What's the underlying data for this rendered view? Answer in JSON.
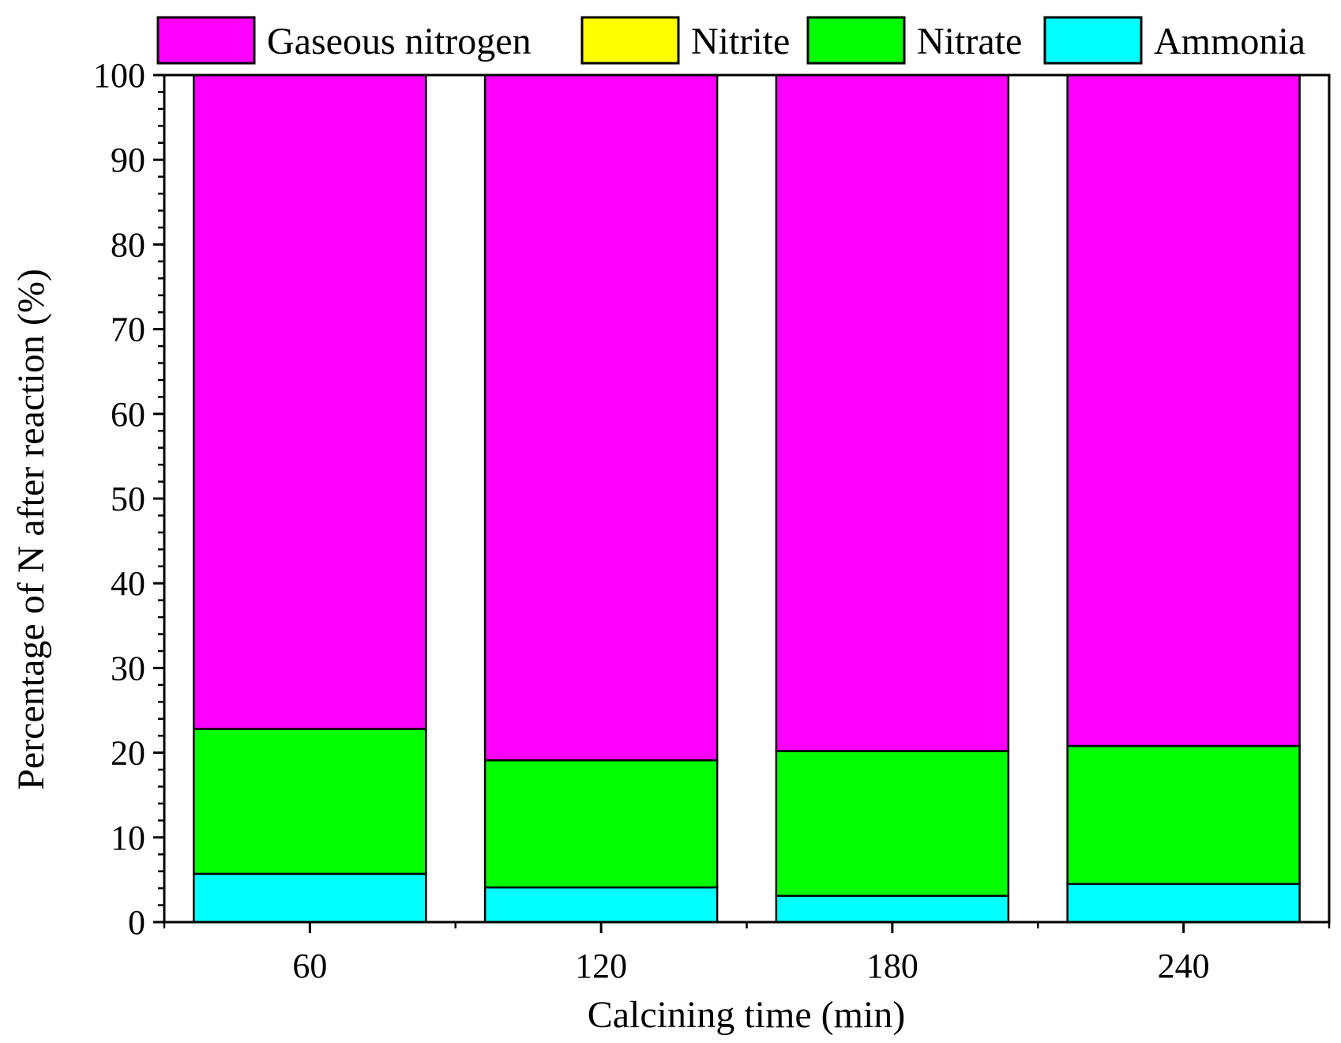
{
  "chart_data": {
    "type": "bar",
    "stacked": true,
    "title": "",
    "xlabel": "Calcining time (min)",
    "ylabel": "Percentage of N after reaction (%)",
    "categories": [
      "60",
      "120",
      "180",
      "240"
    ],
    "ylim": [
      0,
      100
    ],
    "yticks": [
      0,
      10,
      20,
      30,
      40,
      50,
      60,
      70,
      80,
      90,
      100
    ],
    "grid": false,
    "legend_position": "top",
    "stack_order": [
      "Ammonia",
      "Nitrate",
      "Nitrite",
      "Gaseous nitrogen"
    ],
    "series": [
      {
        "name": "Gaseous nitrogen",
        "color": "#ff00ff",
        "values": [
          77.2,
          80.9,
          79.8,
          79.2
        ]
      },
      {
        "name": "Nitrite",
        "color": "#ffff00",
        "values": [
          0,
          0,
          0,
          0
        ]
      },
      {
        "name": "Nitrate",
        "color": "#00ff00",
        "values": [
          17.1,
          15.0,
          17.1,
          16.3
        ]
      },
      {
        "name": "Ammonia",
        "color": "#00ffff",
        "values": [
          5.7,
          4.1,
          3.1,
          4.5
        ]
      }
    ]
  }
}
